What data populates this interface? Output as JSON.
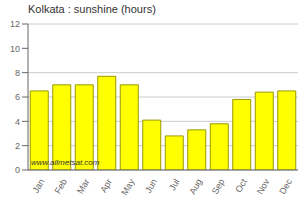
{
  "chart_data": {
    "type": "bar",
    "title": "Kolkata : sunshine (hours)",
    "categories": [
      "Jan",
      "Feb",
      "Mar",
      "Apr",
      "May",
      "Jun",
      "Jul",
      "Aug",
      "Sep",
      "Oct",
      "Nov",
      "Dec"
    ],
    "values": [
      6.5,
      7.0,
      7.0,
      7.7,
      7.0,
      4.1,
      2.8,
      3.3,
      3.8,
      5.8,
      6.4,
      6.5
    ],
    "color": "#ffff00",
    "ylim": [
      0,
      12
    ],
    "yticks": [
      0,
      2,
      4,
      6,
      8,
      10,
      12
    ],
    "grid": true,
    "annotations": [
      "www.allmetsat.com"
    ]
  }
}
